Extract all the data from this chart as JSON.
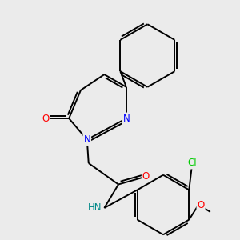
{
  "background_color": "#ebebeb",
  "bond_color": "#000000",
  "bond_width": 1.4,
  "atom_colors": {
    "N": "#0000ff",
    "O": "#ff0000",
    "Cl": "#00cc00",
    "C": "#000000",
    "H": "#008888"
  },
  "font_size": 8.5,
  "fig_bg": "#ebebeb"
}
